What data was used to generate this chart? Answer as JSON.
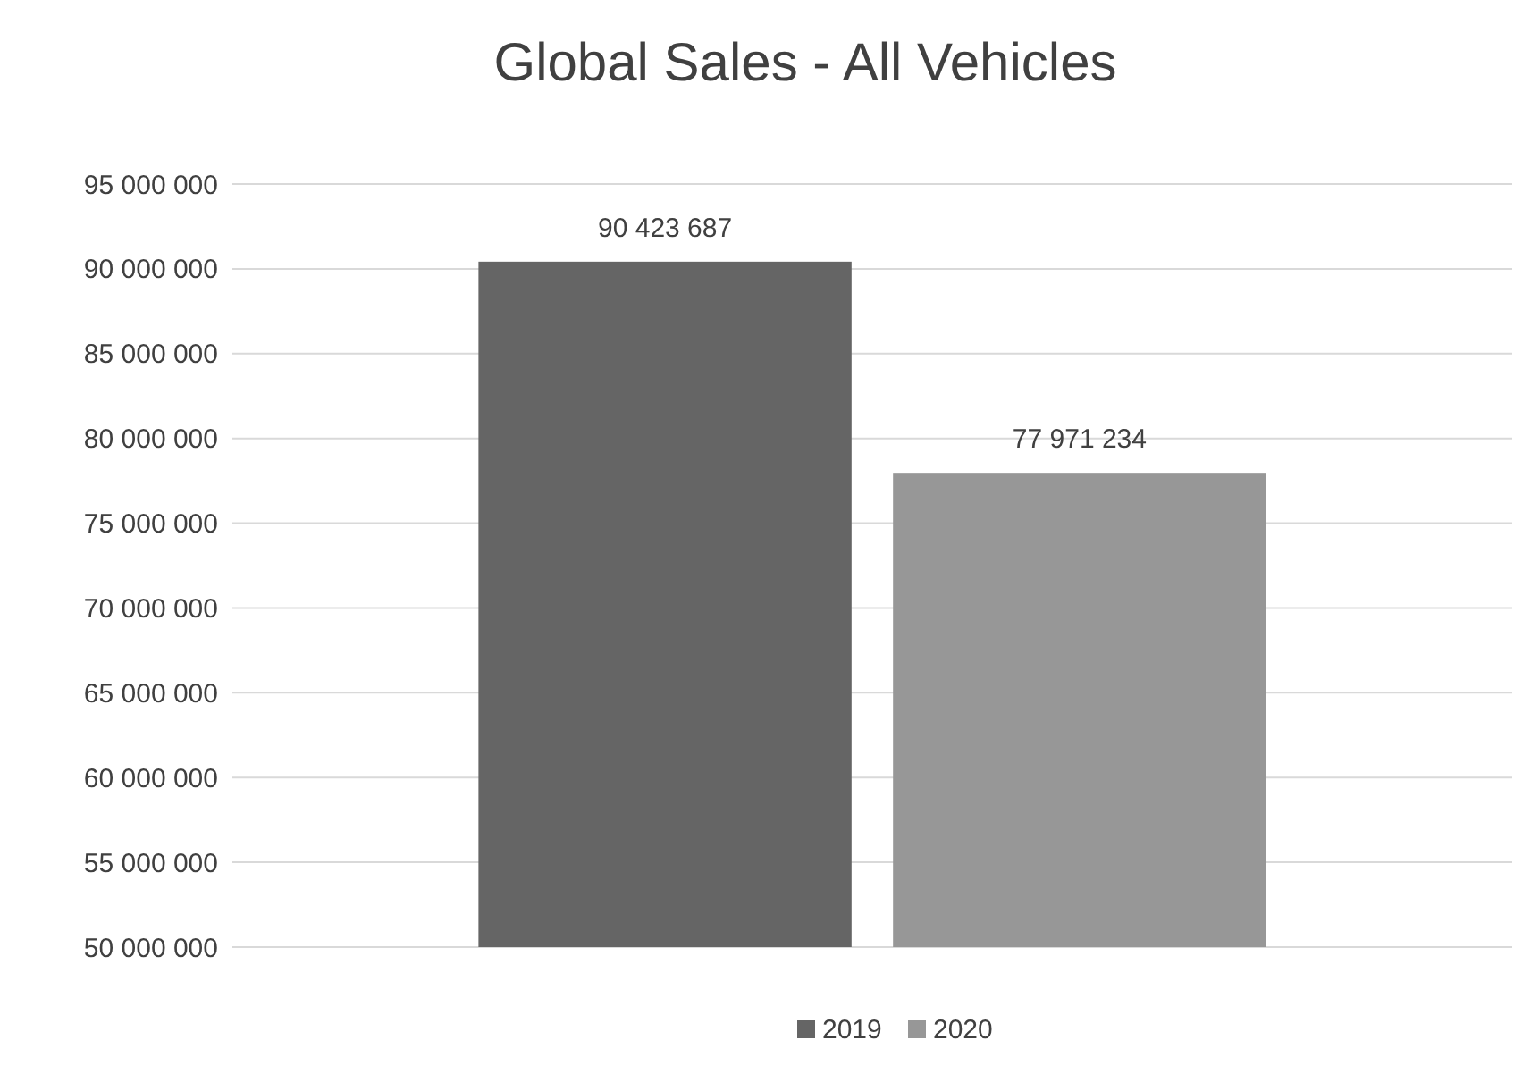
{
  "chart_data": {
    "type": "bar",
    "title": "Global Sales - All Vehicles",
    "categories": [
      null
    ],
    "series": [
      {
        "name": "2019",
        "color": "#656565",
        "values": [
          90423687
        ],
        "value_labels": [
          "90 423 687"
        ]
      },
      {
        "name": "2020",
        "color": "#979797",
        "values": [
          77971234
        ],
        "value_labels": [
          "77 971 234"
        ]
      }
    ],
    "ylim": [
      50000000,
      95000000
    ],
    "yticks": [
      {
        "value": 50000000,
        "label": "50 000 000"
      },
      {
        "value": 55000000,
        "label": "55 000 000"
      },
      {
        "value": 60000000,
        "label": "60 000 000"
      },
      {
        "value": 65000000,
        "label": "65 000 000"
      },
      {
        "value": 70000000,
        "label": "70 000 000"
      },
      {
        "value": 75000000,
        "label": "75 000 000"
      },
      {
        "value": 80000000,
        "label": "80 000 000"
      },
      {
        "value": 85000000,
        "label": "85 000 000"
      },
      {
        "value": 90000000,
        "label": "90 000 000"
      },
      {
        "value": 95000000,
        "label": "95 000 000"
      }
    ],
    "grid": "y",
    "legend": "bottom"
  }
}
